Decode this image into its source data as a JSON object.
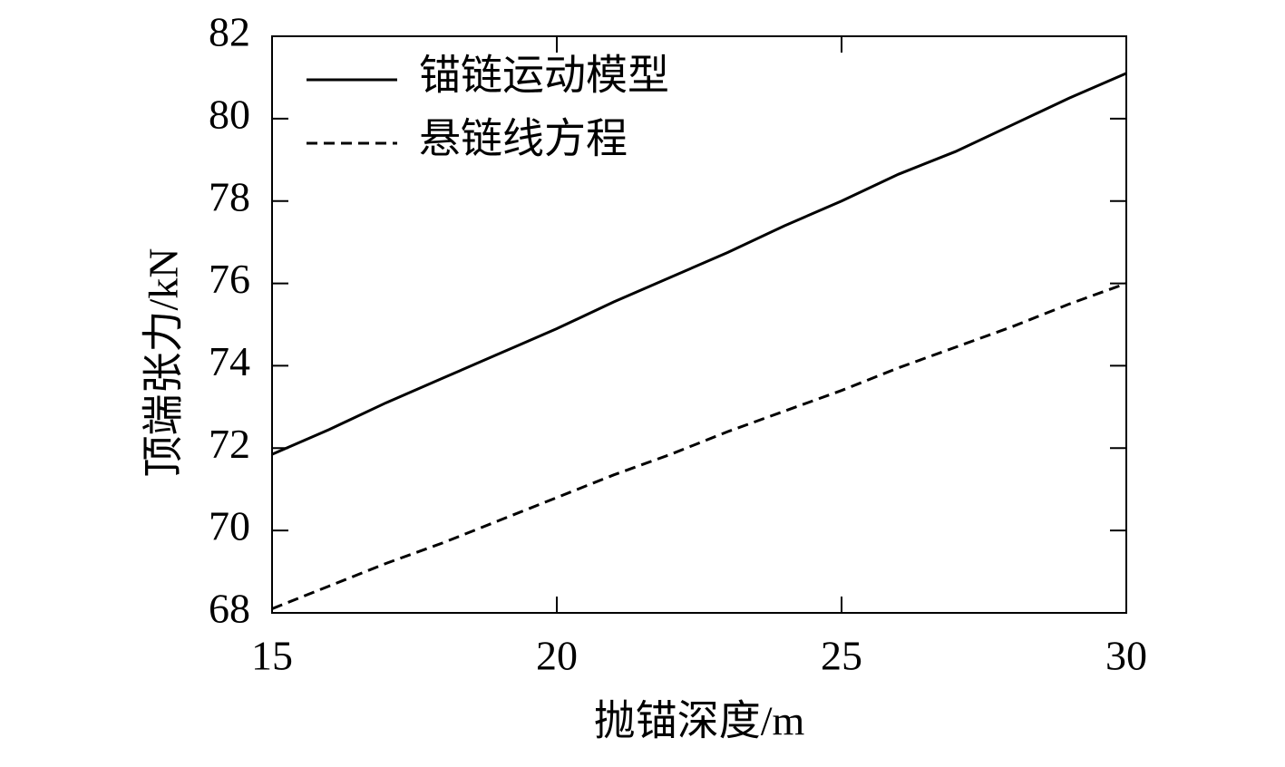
{
  "chart_data": {
    "type": "line",
    "x_label": "抛锚深度/m",
    "y_label": "顶端张力/kN",
    "x": [
      15,
      16,
      17,
      18,
      19,
      20,
      21,
      22,
      23,
      24,
      25,
      26,
      27,
      28,
      29,
      30
    ],
    "series": [
      {
        "name": "锚链运动模型",
        "color": "#000000",
        "dash": "solid",
        "values": [
          71.85,
          72.45,
          73.1,
          73.7,
          74.3,
          74.9,
          75.55,
          76.15,
          76.75,
          77.4,
          78.0,
          78.65,
          79.2,
          79.85,
          80.5,
          81.1
        ]
      },
      {
        "name": "悬链线方程",
        "color": "#000000",
        "dash": "dashed",
        "values": [
          68.1,
          68.65,
          69.2,
          69.7,
          70.25,
          70.8,
          71.35,
          71.85,
          72.4,
          72.9,
          73.4,
          73.95,
          74.45,
          74.95,
          75.5,
          76.0
        ]
      }
    ],
    "xlim": [
      15,
      30
    ],
    "xticks": [
      15,
      20,
      25,
      30
    ],
    "ylim": [
      68,
      82
    ],
    "yticks": [
      68,
      70,
      72,
      74,
      76,
      78,
      80,
      82
    ],
    "grid": false,
    "legend": "upper left"
  }
}
